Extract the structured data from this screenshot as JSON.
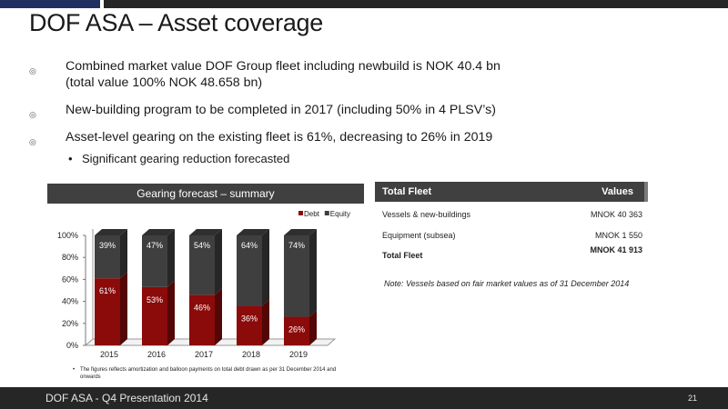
{
  "slide": {
    "title": "DOF ASA – Asset coverage",
    "bullets": [
      {
        "lines": [
          "Combined market value DOF Group fleet including newbuild is NOK 40.4 bn",
          "(total value 100% NOK 48.658 bn)"
        ]
      },
      {
        "lines": [
          "New-building program to be completed in 2017 (including 50% in 4 PLSV’s)"
        ]
      },
      {
        "lines": [
          "Asset-level gearing on the existing fleet is 61%, decreasing to 26% in 2019"
        ]
      }
    ],
    "sub_bullet": "Significant gearing reduction forecasted",
    "bullet_mark": "◎",
    "sub_mark": "•"
  },
  "chart_header": "Gearing  forecast – summary",
  "chart_data": {
    "type": "bar",
    "stacked": true,
    "categories": [
      "2015",
      "2016",
      "2017",
      "2018",
      "2019"
    ],
    "series": [
      {
        "name": "Debt",
        "values": [
          61,
          53,
          46,
          36,
          26
        ],
        "labels": [
          "61%",
          "53%",
          "46%",
          "36%",
          "26%"
        ],
        "color": "#8b0a0a"
      },
      {
        "name": "Equity",
        "values": [
          39,
          47,
          54,
          64,
          74
        ],
        "labels": [
          "39%",
          "47%",
          "54%",
          "64%",
          "74%"
        ],
        "color": "#3f3f3f"
      }
    ],
    "ylim": [
      0,
      100
    ],
    "y_ticks": [
      "0%",
      "20%",
      "40%",
      "60%",
      "80%",
      "100%"
    ],
    "legend_position": "top-right",
    "grid": false
  },
  "chart_note": {
    "mark": "•",
    "text": "The figures reflects amortization and balloon payments on total debt drawn as per 31 December 2014 and onwards"
  },
  "table": {
    "header_left": "Total Fleet",
    "header_right": "Values",
    "rows": [
      {
        "label": "Vessels & new-buildings",
        "value": "MNOK  40 363"
      },
      {
        "label": "Equipment (subsea)",
        "value": "MNOK    1 550"
      },
      {
        "label": "Total Fleet",
        "value": "MNOK  41 913"
      }
    ],
    "note": "Note: Vessels based on fair market values as of  31 December 2014"
  },
  "footer": {
    "left": "DOF ASA    - Q4 Presentation 2014",
    "page": "21"
  }
}
